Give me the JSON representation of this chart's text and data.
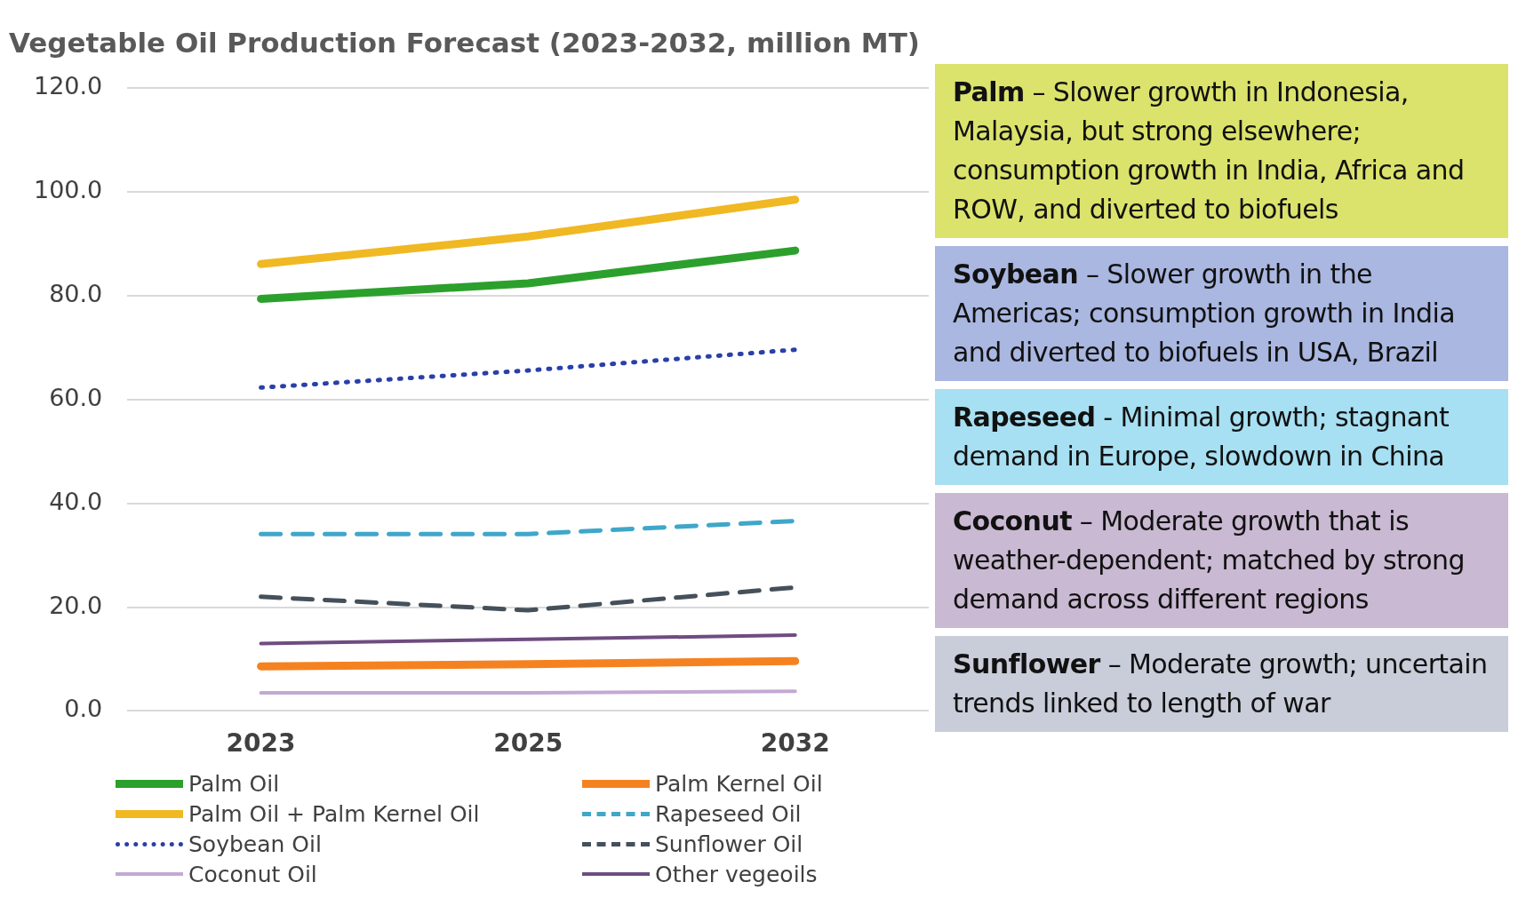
{
  "chart_data": {
    "type": "line",
    "title": "Vegetable Oil Production Forecast (2023-2032, million MT)",
    "categories": [
      "2023",
      "2025",
      "2032"
    ],
    "series": [
      {
        "name": "Palm Oil",
        "color": "#2ca02c",
        "values": [
          79.4,
          82.4,
          88.7
        ],
        "line_style": "solid"
      },
      {
        "name": "Palm Kernel Oil",
        "color": "#f58220",
        "values": [
          8.6,
          9.0,
          9.6
        ],
        "line_style": "solid"
      },
      {
        "name": "Palm Oil + Palm Kernel Oil",
        "color": "#f0b823",
        "values": [
          86.1,
          91.4,
          98.5
        ],
        "line_style": "solid"
      },
      {
        "name": "Rapeseed Oil",
        "color": "#3fa7c9",
        "values": [
          34.1,
          34.1,
          36.6
        ],
        "line_style": "dashed"
      },
      {
        "name": "Soybean Oil",
        "color": "#2a3fa8",
        "values": [
          62.3,
          65.6,
          69.6
        ],
        "line_style": "dotted"
      },
      {
        "name": "Sunflower Oil",
        "color": "#45505a",
        "values": [
          22.0,
          19.4,
          23.8
        ],
        "line_style": "dashed"
      },
      {
        "name": "Coconut Oil",
        "color": "#c4a8d4",
        "values": [
          3.5,
          3.5,
          3.8
        ],
        "line_style": "solid"
      },
      {
        "name": "Other vegeoils",
        "color": "#6e4c80",
        "values": [
          13.0,
          13.8,
          14.6
        ],
        "line_style": "solid"
      }
    ],
    "ylim": [
      0,
      120
    ],
    "yticks": [
      {
        "value": 0,
        "label": "0.0"
      },
      {
        "value": 20,
        "label": "20.0"
      },
      {
        "value": 40,
        "label": "40.0"
      },
      {
        "value": 60,
        "label": "60.0"
      },
      {
        "value": 80,
        "label": "80.0"
      },
      {
        "value": 100,
        "label": "100.0"
      },
      {
        "value": 120,
        "label": "120.0"
      }
    ],
    "grid": "y",
    "legend": "bottom",
    "marker": "none",
    "annotations": [
      "Palm – Slower growth in Indonesia, Malaysia, but strong elsewhere; consumption growth in India, Africa and ROW, and diverted to biofuels",
      "Soybean – Slower growth in the Americas; consumption growth in India and diverted to biofuels in USA, Brazil",
      "Rapeseed - Minimal growth; stagnant demand in Europe, slowdown in China",
      "Coconut – Moderate growth that is weather-dependent; matched by strong demand across different regions",
      "Sunflower – Moderate growth; uncertain trends linked to length of war"
    ]
  }
}
